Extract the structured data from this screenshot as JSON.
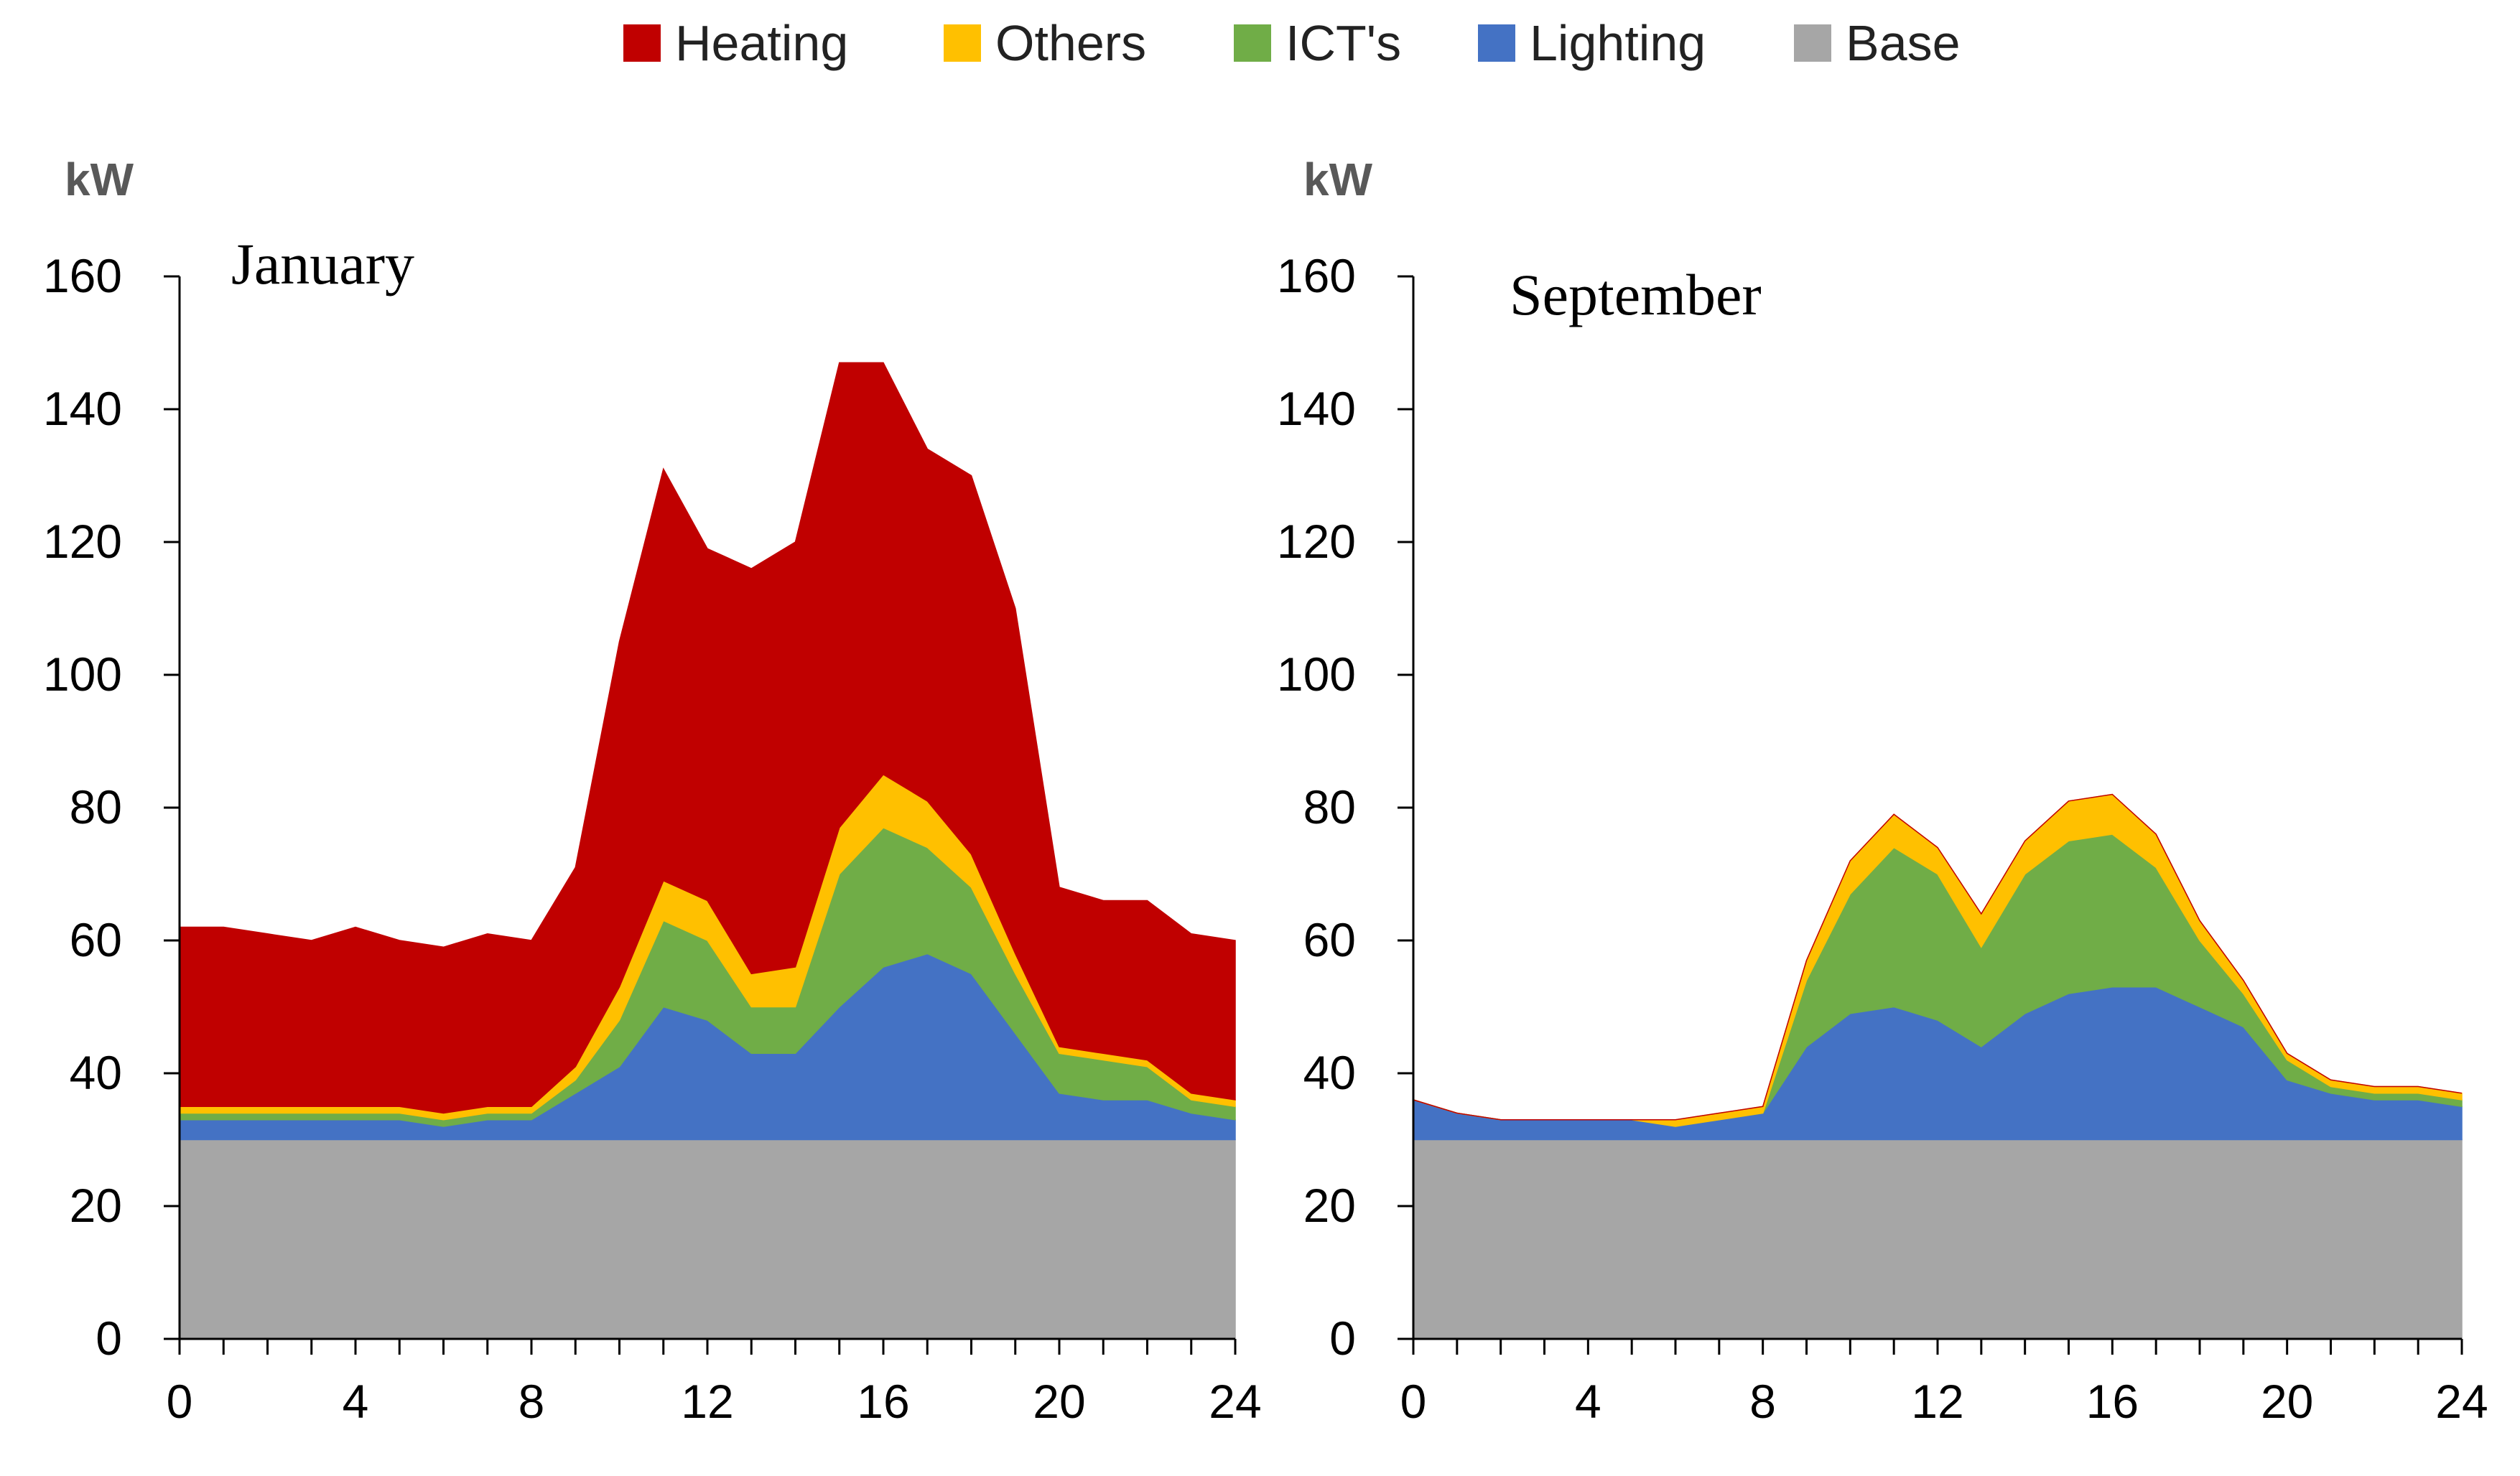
{
  "chart_data": {
    "type": "area",
    "stacked": true,
    "legend": {
      "position": "top-center",
      "entries": [
        "Heating",
        "Others",
        "ICT's",
        "Lighting",
        "Base"
      ]
    },
    "series_colors": {
      "Base": "#A6A6A6",
      "Lighting": "#4472C4",
      "ICT's": "#70AD47",
      "Others": "#FFC000",
      "Heating": "#C00000"
    },
    "panels": [
      {
        "title": "January",
        "ylabel": "kW",
        "xlabel": "",
        "ylim": [
          0,
          160
        ],
        "xlim": [
          0,
          24
        ],
        "yticks": [
          0,
          20,
          40,
          60,
          80,
          100,
          120,
          140,
          160
        ],
        "xticks": [
          0,
          4,
          8,
          12,
          16,
          20,
          24
        ],
        "x": [
          0,
          1,
          2,
          3,
          4,
          5,
          6,
          7,
          8,
          9,
          10,
          11,
          12,
          13,
          14,
          15,
          16,
          17,
          18,
          19,
          20,
          21,
          22,
          23,
          24
        ],
        "series": [
          {
            "name": "Base",
            "values": [
              30,
              30,
              30,
              30,
              30,
              30,
              30,
              30,
              30,
              30,
              30,
              30,
              30,
              30,
              30,
              30,
              30,
              30,
              30,
              30,
              30,
              30,
              30,
              30,
              30
            ]
          },
          {
            "name": "Lighting",
            "values": [
              3,
              3,
              3,
              3,
              3,
              3,
              2,
              3,
              3,
              7,
              11,
              20,
              18,
              13,
              13,
              20,
              26,
              28,
              25,
              16,
              7,
              6,
              6,
              4,
              3
            ]
          },
          {
            "name": "ICT's",
            "values": [
              1,
              1,
              1,
              1,
              1,
              1,
              1,
              1,
              1,
              2,
              7,
              13,
              12,
              7,
              7,
              20,
              21,
              16,
              13,
              9,
              6,
              6,
              5,
              2,
              2
            ]
          },
          {
            "name": "Others",
            "values": [
              1,
              1,
              1,
              1,
              1,
              1,
              1,
              1,
              1,
              2,
              5,
              6,
              6,
              5,
              6,
              7,
              8,
              7,
              5,
              3,
              1,
              1,
              1,
              1,
              1
            ]
          },
          {
            "name": "Heating",
            "values": [
              27,
              27,
              26,
              25,
              27,
              25,
              25,
              26,
              25,
              30,
              52,
              62,
              53,
              61,
              64,
              70,
              62,
              53,
              57,
              52,
              24,
              23,
              24,
              24,
              24
            ]
          }
        ]
      },
      {
        "title": "September",
        "ylabel": "kW",
        "xlabel": "",
        "ylim": [
          0,
          160
        ],
        "xlim": [
          0,
          24
        ],
        "yticks": [
          0,
          20,
          40,
          60,
          80,
          100,
          120,
          140,
          160
        ],
        "xticks": [
          0,
          4,
          8,
          12,
          16,
          20,
          24
        ],
        "x": [
          0,
          1,
          2,
          3,
          4,
          5,
          6,
          7,
          8,
          9,
          10,
          11,
          12,
          13,
          14,
          15,
          16,
          17,
          18,
          19,
          20,
          21,
          22,
          23,
          24
        ],
        "series": [
          {
            "name": "Base",
            "values": [
              30,
              30,
              30,
              30,
              30,
              30,
              30,
              30,
              30,
              30,
              30,
              30,
              30,
              30,
              30,
              30,
              30,
              30,
              30,
              30,
              30,
              30,
              30,
              30,
              30
            ]
          },
          {
            "name": "Lighting",
            "values": [
              6,
              4,
              3,
              3,
              3,
              3,
              2,
              3,
              4,
              14,
              19,
              20,
              18,
              14,
              19,
              22,
              23,
              23,
              20,
              17,
              9,
              7,
              6,
              6,
              5
            ]
          },
          {
            "name": "ICT's",
            "values": [
              0,
              0,
              0,
              0,
              0,
              0,
              0,
              0,
              0,
              10,
              18,
              24,
              22,
              15,
              21,
              23,
              23,
              18,
              10,
              5,
              3,
              1,
              1,
              1,
              1
            ]
          },
          {
            "name": "Others",
            "values": [
              0,
              0,
              0,
              0,
              0,
              0,
              1,
              1,
              1,
              3,
              5,
              5,
              4,
              5,
              5,
              6,
              6,
              5,
              3,
              2,
              1,
              1,
              1,
              1,
              1
            ]
          },
          {
            "name": "Heating",
            "values": [
              0,
              0,
              0,
              0,
              0,
              0,
              0,
              0,
              0,
              0,
              0,
              0,
              0,
              0,
              0,
              0,
              0,
              0,
              0,
              0,
              0,
              0,
              0,
              0,
              0
            ]
          }
        ]
      }
    ]
  }
}
